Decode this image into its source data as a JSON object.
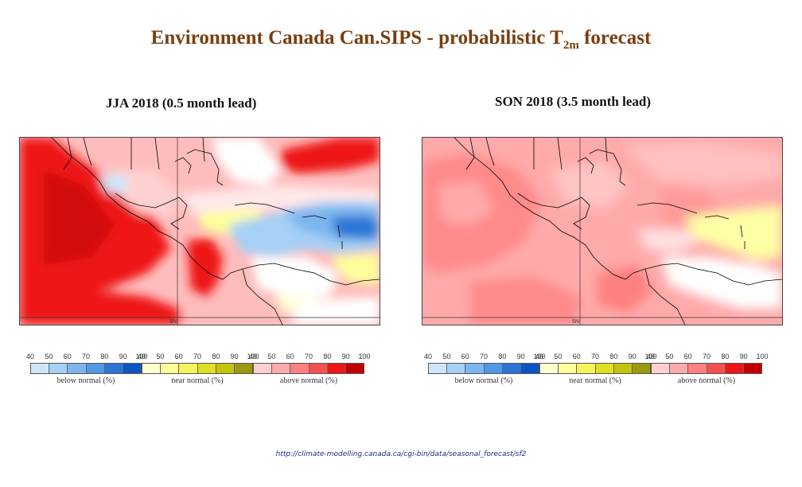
{
  "title": {
    "prefix": "Environment Canada Can.SIPS - probabilistic T",
    "subscript": "2m",
    "suffix": " forecast"
  },
  "panels": [
    {
      "subtitle": "JJA 2018 (0.5 month lead)"
    },
    {
      "subtitle": "SON 2018 (3.5 month lead)"
    }
  ],
  "legend": {
    "ticks": [
      "40",
      "50",
      "60",
      "70",
      "80",
      "90",
      "100"
    ],
    "groups": [
      {
        "label": "below normal (%)",
        "colors": [
          "#cfe6fa",
          "#a6d0f5",
          "#7cb6ef",
          "#4f98e6",
          "#2a76d4",
          "#0b55c2"
        ]
      },
      {
        "label": "near normal (%)",
        "colors": [
          "#ffffd0",
          "#ffff9a",
          "#f5f55a",
          "#e0e020",
          "#c4c40c",
          "#9a9a10"
        ]
      },
      {
        "label": "above normal (%)",
        "colors": [
          "#ffd0d0",
          "#ffaaaa",
          "#ff8080",
          "#f55050",
          "#ee1515",
          "#c00000"
        ]
      }
    ]
  },
  "map_labels": {
    "grid_label": "5N"
  },
  "url": "http://climate-modelling.canada.ca/cgi-bin/data/seasonal_forecast/sf2"
}
